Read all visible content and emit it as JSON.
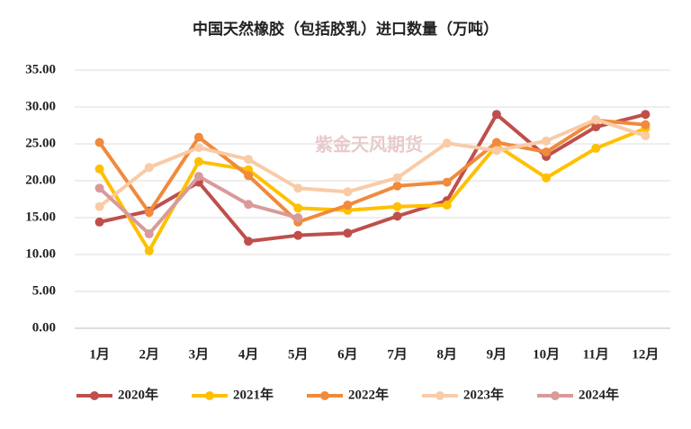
{
  "chart_data": {
    "type": "line",
    "title": "中国天然橡胶（包括胶乳）进口数量（万吨）",
    "watermark": "紫金天风期货",
    "categories": [
      "1月",
      "2月",
      "3月",
      "4月",
      "5月",
      "6月",
      "7月",
      "8月",
      "9月",
      "10月",
      "11月",
      "12月"
    ],
    "series": [
      {
        "name": "2020年",
        "color": "#bf4f4c",
        "values": [
          14.4,
          15.9,
          19.8,
          11.8,
          12.6,
          12.9,
          15.2,
          17.3,
          29.0,
          23.3,
          27.3,
          29.0
        ]
      },
      {
        "name": "2021年",
        "color": "#ffc000",
        "values": [
          21.6,
          10.5,
          22.6,
          21.5,
          16.3,
          16.0,
          16.5,
          16.7,
          24.8,
          20.4,
          24.4,
          27.1
        ]
      },
      {
        "name": "2022年",
        "color": "#f08a3c",
        "values": [
          25.2,
          15.7,
          25.9,
          20.7,
          14.4,
          16.7,
          19.3,
          19.8,
          25.2,
          23.9,
          28.2,
          27.6
        ]
      },
      {
        "name": "2023年",
        "color": "#f9cba6",
        "values": [
          16.5,
          21.8,
          24.5,
          22.9,
          19.0,
          18.5,
          20.4,
          25.1,
          24.1,
          25.4,
          28.3,
          26.1
        ]
      },
      {
        "name": "2024年",
        "color": "#d89a9a",
        "values": [
          19.0,
          12.8,
          20.6,
          16.8,
          15.0,
          null,
          null,
          null,
          null,
          null,
          null,
          null
        ]
      }
    ],
    "ylim": [
      0,
      35
    ],
    "yticks": [
      {
        "value": 0,
        "label": "0.00"
      },
      {
        "value": 5,
        "label": "5.00"
      },
      {
        "value": 10,
        "label": "10.00"
      },
      {
        "value": 15,
        "label": "15.00"
      },
      {
        "value": 20,
        "label": "20.00"
      },
      {
        "value": 25,
        "label": "25.00"
      },
      {
        "value": 30,
        "label": "30.00"
      },
      {
        "value": 35,
        "label": "35.00"
      }
    ],
    "grid": true,
    "legend": "bottom"
  }
}
